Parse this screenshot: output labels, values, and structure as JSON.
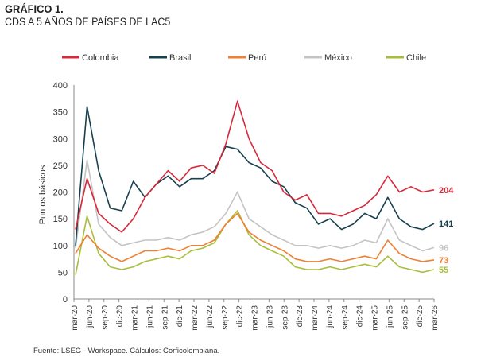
{
  "header": {
    "title": "GRÁFICO 1.",
    "subtitle": "CDS A 5 AÑOS DE PAÍSES DE LAC5"
  },
  "source": "Fuente: LSEG - Workspace. Cálculos: Corficolombiana.",
  "chart_data": {
    "type": "line",
    "ylabel": "Puntos básicos",
    "ylim": [
      0,
      400
    ],
    "yticks": [
      0,
      50,
      100,
      150,
      200,
      250,
      300,
      350,
      400
    ],
    "xlabels": [
      "mar-20",
      "jun-20",
      "sep-20",
      "dic-20",
      "mar-21",
      "jun-21",
      "sep-21",
      "dic-21",
      "mar-22",
      "jun-22",
      "sep-22",
      "dic-22",
      "mar-23",
      "jun-23",
      "sep-23",
      "dic-23",
      "mar-24",
      "jun-24",
      "sep-24",
      "dic-24",
      "mar-25",
      "jun-25",
      "sep-25",
      "dic-25",
      "mar-26"
    ],
    "grid": false,
    "legend_position": "top",
    "series": [
      {
        "name": "Colombia",
        "color": "#d6293b",
        "values": [
          130,
          225,
          160,
          140,
          125,
          150,
          190,
          215,
          240,
          220,
          245,
          250,
          235,
          290,
          370,
          300,
          255,
          240,
          200,
          185,
          195,
          160,
          160,
          155,
          165,
          175,
          195,
          230,
          200,
          210,
          200,
          204
        ],
        "end_label": "204"
      },
      {
        "name": "Brasil",
        "color": "#17414f",
        "values": [
          100,
          360,
          240,
          170,
          165,
          220,
          190,
          215,
          230,
          210,
          225,
          225,
          240,
          285,
          280,
          255,
          245,
          220,
          210,
          180,
          170,
          140,
          150,
          130,
          140,
          160,
          150,
          190,
          150,
          135,
          130,
          141
        ],
        "end_label": "141"
      },
      {
        "name": "Perú",
        "color": "#ef7f32",
        "values": [
          85,
          120,
          95,
          80,
          70,
          80,
          90,
          90,
          95,
          90,
          100,
          100,
          110,
          140,
          160,
          125,
          110,
          100,
          90,
          75,
          70,
          70,
          75,
          70,
          75,
          80,
          75,
          110,
          85,
          75,
          70,
          73
        ],
        "end_label": "73"
      },
      {
        "name": "México",
        "color": "#c4c4c4",
        "values": [
          95,
          260,
          140,
          115,
          100,
          105,
          110,
          110,
          115,
          110,
          120,
          125,
          135,
          160,
          200,
          150,
          135,
          120,
          110,
          100,
          100,
          95,
          100,
          95,
          100,
          110,
          105,
          150,
          110,
          100,
          90,
          96
        ],
        "end_label": "96"
      },
      {
        "name": "Chile",
        "color": "#a8bd3a",
        "values": [
          45,
          155,
          85,
          60,
          55,
          60,
          70,
          75,
          80,
          75,
          90,
          95,
          105,
          140,
          165,
          120,
          100,
          90,
          80,
          60,
          55,
          55,
          60,
          55,
          60,
          65,
          60,
          80,
          60,
          55,
          50,
          55
        ],
        "end_label": "55"
      }
    ]
  }
}
